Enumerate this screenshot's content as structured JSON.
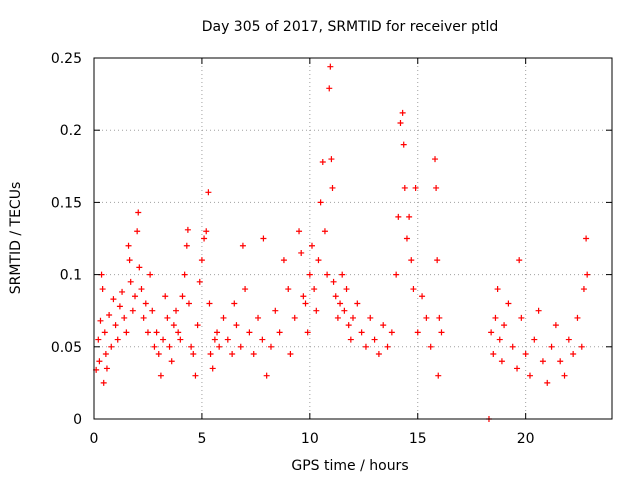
{
  "chart_data": {
    "type": "scatter",
    "title": "Day 305 of 2017, SRMTID for receiver ptld",
    "xlabel": "GPS time / hours",
    "ylabel": "SRMTID / TECUs",
    "xlim": [
      0,
      24
    ],
    "ylim": [
      0,
      0.25
    ],
    "xticks": [
      0,
      5,
      10,
      15,
      20
    ],
    "xtick_labels": [
      "0",
      "5",
      "10",
      "15",
      "20"
    ],
    "yticks": [
      0,
      0.05,
      0.1,
      0.15,
      0.2,
      0.25
    ],
    "ytick_labels": [
      "0",
      "0.05",
      "0.1",
      "0.15",
      "0.2",
      "0.25"
    ],
    "grid": true,
    "marker": "+",
    "color": "#ff0000",
    "data_gap_hours": [
      16.2,
      18.3
    ],
    "series": [
      {
        "name": "SRMTID",
        "points": [
          [
            0.1,
            0.034
          ],
          [
            0.2,
            0.055
          ],
          [
            0.25,
            0.04
          ],
          [
            0.3,
            0.068
          ],
          [
            0.35,
            0.1
          ],
          [
            0.4,
            0.09
          ],
          [
            0.45,
            0.025
          ],
          [
            0.5,
            0.06
          ],
          [
            0.55,
            0.045
          ],
          [
            0.6,
            0.035
          ],
          [
            0.7,
            0.072
          ],
          [
            0.8,
            0.05
          ],
          [
            0.9,
            0.083
          ],
          [
            1.0,
            0.065
          ],
          [
            1.1,
            0.055
          ],
          [
            1.2,
            0.078
          ],
          [
            1.3,
            0.088
          ],
          [
            1.4,
            0.07
          ],
          [
            1.5,
            0.06
          ],
          [
            1.6,
            0.12
          ],
          [
            1.65,
            0.11
          ],
          [
            1.7,
            0.095
          ],
          [
            1.8,
            0.075
          ],
          [
            1.9,
            0.085
          ],
          [
            2.0,
            0.13
          ],
          [
            2.05,
            0.143
          ],
          [
            2.1,
            0.105
          ],
          [
            2.2,
            0.09
          ],
          [
            2.3,
            0.07
          ],
          [
            2.4,
            0.08
          ],
          [
            2.5,
            0.06
          ],
          [
            2.6,
            0.1
          ],
          [
            2.7,
            0.075
          ],
          [
            2.8,
            0.05
          ],
          [
            2.9,
            0.06
          ],
          [
            3.0,
            0.045
          ],
          [
            3.1,
            0.03
          ],
          [
            3.2,
            0.055
          ],
          [
            3.3,
            0.085
          ],
          [
            3.4,
            0.07
          ],
          [
            3.5,
            0.05
          ],
          [
            3.6,
            0.04
          ],
          [
            3.7,
            0.065
          ],
          [
            3.8,
            0.075
          ],
          [
            3.9,
            0.06
          ],
          [
            4.0,
            0.055
          ],
          [
            4.1,
            0.085
          ],
          [
            4.2,
            0.1
          ],
          [
            4.3,
            0.12
          ],
          [
            4.35,
            0.131
          ],
          [
            4.4,
            0.08
          ],
          [
            4.5,
            0.05
          ],
          [
            4.6,
            0.045
          ],
          [
            4.7,
            0.03
          ],
          [
            4.8,
            0.065
          ],
          [
            4.9,
            0.095
          ],
          [
            5.0,
            0.11
          ],
          [
            5.1,
            0.125
          ],
          [
            5.2,
            0.13
          ],
          [
            5.3,
            0.157
          ],
          [
            5.35,
            0.08
          ],
          [
            5.4,
            0.045
          ],
          [
            5.5,
            0.035
          ],
          [
            5.6,
            0.055
          ],
          [
            5.7,
            0.06
          ],
          [
            5.8,
            0.05
          ],
          [
            6.0,
            0.07
          ],
          [
            6.2,
            0.055
          ],
          [
            6.4,
            0.045
          ],
          [
            6.5,
            0.08
          ],
          [
            6.6,
            0.065
          ],
          [
            6.8,
            0.05
          ],
          [
            6.9,
            0.12
          ],
          [
            7.0,
            0.09
          ],
          [
            7.2,
            0.06
          ],
          [
            7.4,
            0.045
          ],
          [
            7.6,
            0.07
          ],
          [
            7.8,
            0.055
          ],
          [
            7.85,
            0.125
          ],
          [
            8.0,
            0.03
          ],
          [
            8.2,
            0.05
          ],
          [
            8.4,
            0.075
          ],
          [
            8.6,
            0.06
          ],
          [
            8.8,
            0.11
          ],
          [
            9.0,
            0.09
          ],
          [
            9.1,
            0.045
          ],
          [
            9.3,
            0.07
          ],
          [
            9.5,
            0.13
          ],
          [
            9.6,
            0.115
          ],
          [
            9.7,
            0.085
          ],
          [
            9.8,
            0.08
          ],
          [
            9.9,
            0.06
          ],
          [
            10.0,
            0.1
          ],
          [
            10.1,
            0.12
          ],
          [
            10.2,
            0.09
          ],
          [
            10.3,
            0.075
          ],
          [
            10.4,
            0.11
          ],
          [
            10.5,
            0.15
          ],
          [
            10.6,
            0.178
          ],
          [
            10.7,
            0.13
          ],
          [
            10.8,
            0.1
          ],
          [
            10.9,
            0.229
          ],
          [
            10.95,
            0.244
          ],
          [
            11.0,
            0.18
          ],
          [
            11.05,
            0.16
          ],
          [
            11.1,
            0.095
          ],
          [
            11.2,
            0.085
          ],
          [
            11.3,
            0.07
          ],
          [
            11.4,
            0.08
          ],
          [
            11.5,
            0.1
          ],
          [
            11.6,
            0.075
          ],
          [
            11.7,
            0.09
          ],
          [
            11.8,
            0.065
          ],
          [
            11.9,
            0.055
          ],
          [
            12.0,
            0.07
          ],
          [
            12.2,
            0.08
          ],
          [
            12.4,
            0.06
          ],
          [
            12.6,
            0.05
          ],
          [
            12.8,
            0.07
          ],
          [
            13.0,
            0.055
          ],
          [
            13.2,
            0.045
          ],
          [
            13.4,
            0.065
          ],
          [
            13.6,
            0.05
          ],
          [
            13.8,
            0.06
          ],
          [
            14.0,
            0.1
          ],
          [
            14.1,
            0.14
          ],
          [
            14.2,
            0.205
          ],
          [
            14.3,
            0.212
          ],
          [
            14.35,
            0.19
          ],
          [
            14.4,
            0.16
          ],
          [
            14.5,
            0.125
          ],
          [
            14.6,
            0.14
          ],
          [
            14.7,
            0.11
          ],
          [
            14.8,
            0.09
          ],
          [
            14.9,
            0.16
          ],
          [
            15.0,
            0.06
          ],
          [
            15.2,
            0.085
          ],
          [
            15.4,
            0.07
          ],
          [
            15.6,
            0.05
          ],
          [
            15.8,
            0.18
          ],
          [
            15.85,
            0.16
          ],
          [
            15.9,
            0.11
          ],
          [
            15.95,
            0.03
          ],
          [
            16.0,
            0.07
          ],
          [
            16.1,
            0.06
          ],
          [
            18.3,
            0.0
          ],
          [
            18.4,
            0.06
          ],
          [
            18.5,
            0.045
          ],
          [
            18.6,
            0.07
          ],
          [
            18.7,
            0.09
          ],
          [
            18.8,
            0.055
          ],
          [
            18.9,
            0.04
          ],
          [
            19.0,
            0.065
          ],
          [
            19.2,
            0.08
          ],
          [
            19.4,
            0.05
          ],
          [
            19.6,
            0.035
          ],
          [
            19.7,
            0.11
          ],
          [
            19.8,
            0.07
          ],
          [
            20.0,
            0.045
          ],
          [
            20.2,
            0.03
          ],
          [
            20.4,
            0.055
          ],
          [
            20.6,
            0.075
          ],
          [
            20.8,
            0.04
          ],
          [
            21.0,
            0.025
          ],
          [
            21.2,
            0.05
          ],
          [
            21.4,
            0.065
          ],
          [
            21.6,
            0.04
          ],
          [
            21.8,
            0.03
          ],
          [
            22.0,
            0.055
          ],
          [
            22.2,
            0.045
          ],
          [
            22.4,
            0.07
          ],
          [
            22.6,
            0.05
          ],
          [
            22.7,
            0.09
          ],
          [
            22.8,
            0.125
          ],
          [
            22.85,
            0.1
          ]
        ]
      }
    ]
  }
}
